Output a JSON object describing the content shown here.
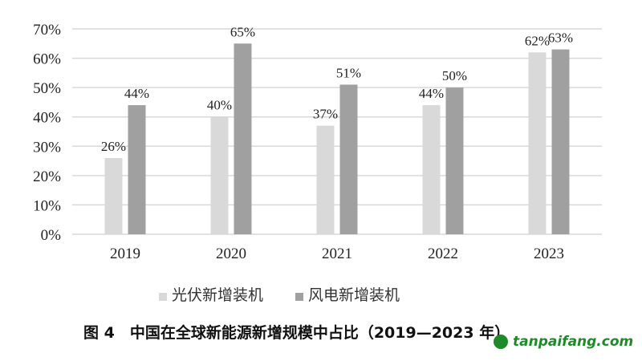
{
  "chart_data": {
    "type": "bar",
    "title": "图 4　中国在全球新能源新增规模中占比（2019—2023 年）",
    "categories": [
      "2019",
      "2020",
      "2021",
      "2022",
      "2023"
    ],
    "series": [
      {
        "name": "光伏新增装机",
        "values": [
          26,
          40,
          37,
          44,
          62
        ],
        "labels": [
          "26%",
          "40%",
          "37%",
          "44%",
          "62%"
        ],
        "color": "#d9d9d9"
      },
      {
        "name": "风电新增装机",
        "values": [
          44,
          65,
          51,
          50,
          63
        ],
        "labels": [
          "44%",
          "65%",
          "51%",
          "50%",
          "63%"
        ],
        "color": "#a0a0a0"
      }
    ],
    "ylim": [
      0,
      70
    ],
    "yticks": [
      "0%",
      "10%",
      "20%",
      "30%",
      "40%",
      "50%",
      "60%",
      "70%"
    ],
    "grid": true,
    "legend_position": "bottom",
    "xlabel": "",
    "ylabel": ""
  },
  "caption": "图 4　中国在全球新能源新增规模中占比（2019—2023 年）",
  "watermark": "tanpaifang.com"
}
